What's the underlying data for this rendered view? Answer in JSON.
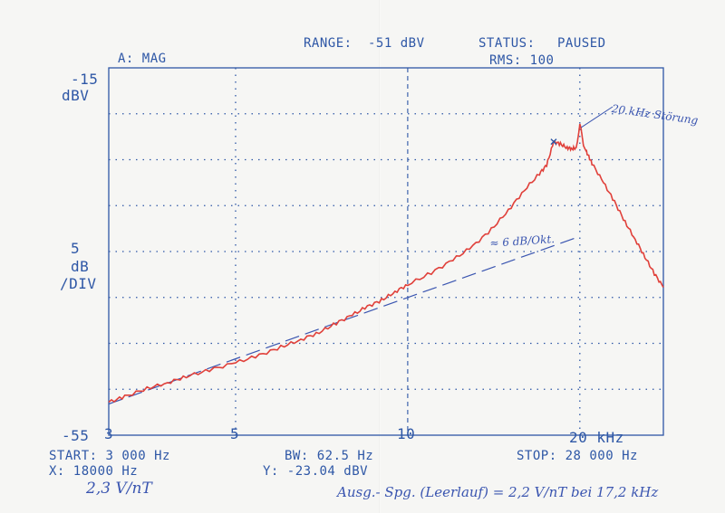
{
  "header": {
    "range_label": "RANGE:",
    "range_value": "-51 dBV",
    "status_label": "STATUS:",
    "status_value": "PAUSED",
    "trace": "A: MAG",
    "rms": "RMS: 100"
  },
  "y_axis": {
    "top_value": "-15",
    "top_unit": "dBV",
    "scale_value": "5",
    "scale_unit": "dB",
    "scale_per": "/DIV",
    "bottom_value": "-55"
  },
  "footer": {
    "start": "START:  3 000 Hz",
    "bw": "BW:  62.5 Hz",
    "stop": "STOP:  28 000 Hz",
    "x_marker": "X:  18000 Hz",
    "y_marker": "Y: -23.04 dBV"
  },
  "handwriting": {
    "note_20k": "20 kHz Störung",
    "slope": "≈ 6 dB/Okt.",
    "sensitivity": "2,3 V/nT",
    "output": "Ausg.- Spg. (Leerlauf)  =  2,2 V/nT bei 17,2 kHz"
  },
  "colors": {
    "trace": "#e0403a",
    "ink": "#2e57a6",
    "pen": "#3a55b0"
  },
  "chart_data": {
    "type": "line",
    "x_scale": "log",
    "x_unit": "kHz",
    "xlim": [
      3,
      28
    ],
    "ylim": [
      -55,
      -15
    ],
    "y_divisions": 8,
    "x_ticks": [
      {
        "x": 3,
        "label": "3"
      },
      {
        "x": 5,
        "label": "5"
      },
      {
        "x": 10,
        "label": "10"
      },
      {
        "x": 20,
        "label": "20 kHz"
      }
    ],
    "marker": {
      "x": 18,
      "y": -23.04
    },
    "series": [
      {
        "role": "measured",
        "x": [
          3,
          3.2,
          3.5,
          3.8,
          4.1,
          4.5,
          5,
          5.5,
          6,
          6.5,
          7,
          7.5,
          8,
          8.5,
          9,
          9.5,
          10,
          11,
          12,
          13,
          14,
          15,
          16,
          17,
          17.5,
          18,
          18.5,
          19,
          19.4,
          19.7,
          19.8,
          19.9,
          20.0,
          20.1,
          20.3,
          20.6,
          21,
          22,
          23,
          24,
          25,
          26,
          27,
          28
        ],
        "y": [
          -51.4,
          -50.8,
          -49.9,
          -49.3,
          -48.6,
          -47.9,
          -47.1,
          -46.3,
          -45.4,
          -44.6,
          -43.8,
          -42.8,
          -41.9,
          -41.0,
          -40.3,
          -39.4,
          -38.6,
          -37.3,
          -35.9,
          -34.4,
          -32.6,
          -30.5,
          -28.3,
          -26.5,
          -25.6,
          -23.04,
          -23.3,
          -23.7,
          -23.8,
          -23.7,
          -23.1,
          -22.2,
          -21.1,
          -21.6,
          -23.5,
          -24.3,
          -25.4,
          -27.5,
          -29.6,
          -31.8,
          -33.7,
          -35.6,
          -37.4,
          -38.9
        ]
      },
      {
        "role": "reference-slope",
        "style": "dashed",
        "x": [
          3,
          10,
          19.7
        ],
        "y": [
          -51.6,
          -40.0,
          -33.5
        ]
      }
    ]
  }
}
